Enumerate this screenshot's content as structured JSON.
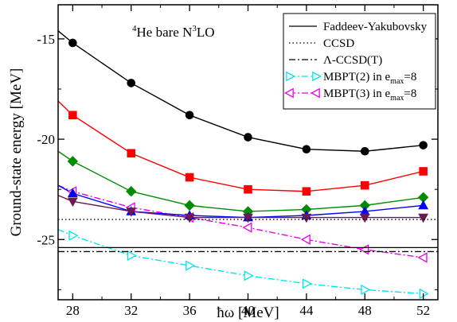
{
  "chart_data": {
    "type": "line",
    "annotation": "4He bare N3LO",
    "xlabel": "ħω [MeV]",
    "ylabel": "Ground-state energy [MeV]",
    "xlim": [
      27,
      53
    ],
    "ylim": [
      -28.0,
      -13.3
    ],
    "x_ticks": [
      28,
      32,
      36,
      40,
      44,
      48,
      52
    ],
    "y_ticks": [
      -25,
      -20,
      -15
    ],
    "grid": false,
    "legend_position": "top-right",
    "x": [
      28,
      32,
      36,
      40,
      44,
      48,
      52
    ],
    "reference_lines": [
      {
        "name": "Faddeev-Yakubovsky",
        "y": -25.4,
        "style": "solid"
      },
      {
        "name": "CCSD",
        "y": -24.0,
        "style": "dotted"
      },
      {
        "name": "Λ-CCSD(T)",
        "y": -25.6,
        "style": "dashdot"
      }
    ],
    "series": [
      {
        "name": "MBPT(2) in emax=8",
        "legend": true,
        "color": "#00e5ee",
        "marker": "triangle-right",
        "line": "dashdot",
        "x_start": 27,
        "y_start": -24.5,
        "values": [
          -24.8,
          -25.8,
          -26.3,
          -26.8,
          -27.2,
          -27.5,
          -27.7
        ]
      },
      {
        "name": "MBPT(3) in emax=8",
        "legend": true,
        "color": "#e800e8",
        "marker": "triangle-left",
        "line": "dashdot",
        "x_start": 27,
        "y_start": -22.3,
        "values": [
          -22.6,
          -23.4,
          -23.9,
          -24.4,
          -25.0,
          -25.5,
          -25.9
        ]
      },
      {
        "name": "",
        "legend": false,
        "color": "#000000",
        "marker": "circle",
        "line": "solid",
        "x_start": 27,
        "y_start": -14.6,
        "values": [
          -15.2,
          -17.2,
          -18.8,
          -19.9,
          -20.5,
          -20.6,
          -20.3
        ]
      },
      {
        "name": "",
        "legend": false,
        "color": "#ff0000",
        "marker": "square",
        "line": "solid",
        "x_start": 27,
        "y_start": -18.1,
        "values": [
          -18.8,
          -20.7,
          -21.9,
          -22.5,
          -22.6,
          -22.3,
          -21.6
        ]
      },
      {
        "name": "",
        "legend": false,
        "color": "#008c00",
        "marker": "diamond",
        "line": "solid",
        "x_start": 27,
        "y_start": -20.6,
        "values": [
          -21.1,
          -22.6,
          -23.3,
          -23.6,
          -23.5,
          -23.3,
          -22.9
        ]
      },
      {
        "name": "",
        "legend": false,
        "color": "#0000ff",
        "marker": "triangle-up",
        "line": "solid",
        "x_start": 27,
        "y_start": -22.3,
        "values": [
          -22.7,
          -23.6,
          -23.8,
          -23.9,
          -23.8,
          -23.6,
          -23.3
        ]
      },
      {
        "name": "",
        "legend": false,
        "color": "#6b1a50",
        "marker": "triangle-down",
        "line": "solid",
        "x_start": 27,
        "y_start": -22.8,
        "values": [
          -23.1,
          -23.6,
          -23.9,
          -23.9,
          -23.9,
          -23.9,
          -23.9
        ]
      }
    ]
  }
}
